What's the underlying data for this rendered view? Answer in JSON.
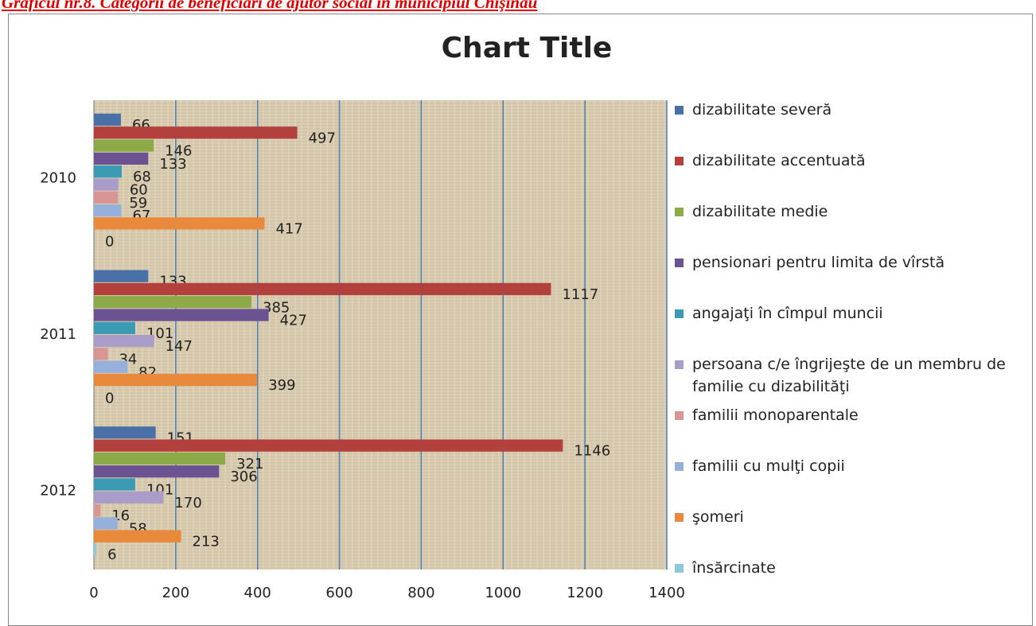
{
  "caption": "Graficul nr.8. Categorii de beneficiari de ajutor social în municipiul Chişinău",
  "chart_data": {
    "type": "bar",
    "orientation": "horizontal",
    "title": "Chart Title",
    "categories": [
      "2010",
      "2011",
      "2012"
    ],
    "series": [
      {
        "name": "dizabilitate severă",
        "color": "#4a70a8",
        "values": [
          66,
          133,
          151
        ]
      },
      {
        "name": "dizabilitate accentuată",
        "color": "#b2413e",
        "values": [
          497,
          1117,
          1146
        ]
      },
      {
        "name": "dizabilitate medie",
        "color": "#8cab48",
        "values": [
          146,
          385,
          321
        ]
      },
      {
        "name": "pensionari pentru limita de vîrstă",
        "color": "#6b5290",
        "values": [
          133,
          427,
          306
        ]
      },
      {
        "name": "angajaţi în cîmpul muncii",
        "color": "#3b9bb2",
        "values": [
          68,
          101,
          101
        ]
      },
      {
        "name": "persoana c/e îngrijeşte de un membru de familie cu dizabilităţi",
        "color": "#a99cc9",
        "values": [
          60,
          147,
          170
        ]
      },
      {
        "name": "familii monoparentale",
        "color": "#d99494",
        "values": [
          59,
          34,
          16
        ]
      },
      {
        "name": "familii cu mulţi copii",
        "color": "#97b0db",
        "values": [
          67,
          82,
          58
        ]
      },
      {
        "name": "şomeri",
        "color": "#e8893b",
        "values": [
          417,
          399,
          213
        ]
      },
      {
        "name": "însărcinate",
        "color": "#8fc9d9",
        "values": [
          0,
          0,
          6
        ]
      }
    ],
    "xlim": [
      0,
      1400
    ],
    "xticks": [
      0,
      200,
      400,
      600,
      800,
      1000,
      1200,
      1400
    ],
    "grid": true,
    "legend": "right"
  }
}
